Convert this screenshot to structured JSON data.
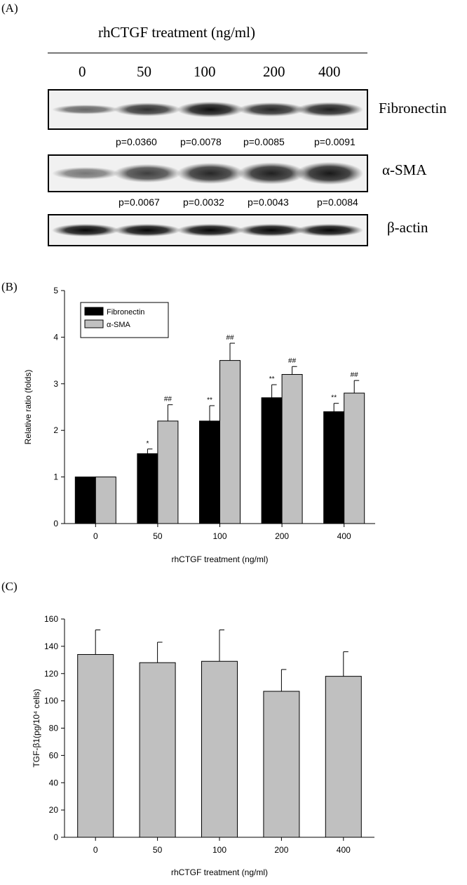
{
  "panel_a": {
    "label": "(A)",
    "treatment_title": "rhCTGF treatment  (ng/ml)",
    "doses": [
      "0",
      "50",
      "100",
      "200",
      "400"
    ],
    "blots": [
      {
        "name": "Fibronectin",
        "intensity": [
          0.35,
          0.7,
          0.9,
          0.75,
          0.8
        ]
      },
      {
        "name": "α-SMA",
        "intensity": [
          0.25,
          0.6,
          0.75,
          0.8,
          0.85
        ]
      },
      {
        "name": "β-actin",
        "intensity": [
          0.95,
          0.95,
          0.95,
          0.95,
          0.95
        ]
      }
    ],
    "fibronectin_pvalues": [
      "p=0.0360",
      "p=0.0078",
      "p=0.0085",
      "p=0.0091"
    ],
    "sma_pvalues": [
      "p=0.0067",
      "p=0.0032",
      "p=0.0043",
      "p=0.0084"
    ]
  },
  "chart_data": [
    {
      "panel": "(B)",
      "type": "bar",
      "categories": [
        "0",
        "50",
        "100",
        "200",
        "400"
      ],
      "series": [
        {
          "name": "Fibronectin",
          "color": "#000000",
          "values": [
            1.0,
            1.5,
            2.2,
            2.7,
            2.4
          ],
          "errors": [
            0,
            0.1,
            0.33,
            0.28,
            0.18
          ],
          "sig": [
            "",
            "*",
            "**",
            "**",
            "**"
          ]
        },
        {
          "name": "α-SMA",
          "color": "#c0c0c0",
          "values": [
            1.0,
            2.2,
            3.5,
            3.2,
            2.8
          ],
          "errors": [
            0,
            0.35,
            0.37,
            0.17,
            0.27
          ],
          "sig": [
            "",
            "##",
            "##",
            "##",
            "##"
          ]
        }
      ],
      "xlabel": "rhCTGF treatment (ng/ml)",
      "ylabel": "Relative ratio (folds)",
      "ylim": [
        0,
        5
      ],
      "yticks": [
        "0",
        "1",
        "2",
        "3",
        "4",
        "5"
      ],
      "legend_position": "top-left"
    },
    {
      "panel": "(C)",
      "type": "bar",
      "categories": [
        "0",
        "50",
        "100",
        "200",
        "400"
      ],
      "series": [
        {
          "color": "#c0c0c0",
          "values": [
            134,
            128,
            129,
            107,
            118
          ],
          "errors": [
            18,
            15,
            23,
            16,
            18
          ]
        }
      ],
      "xlabel": "rhCTGF treatment (ng/ml)",
      "ylabel": "TGF-β1(pg/10⁴ cells)",
      "ylim": [
        0,
        160
      ],
      "yticks": [
        "0",
        "20",
        "40",
        "60",
        "80",
        "100",
        "120",
        "140",
        "160"
      ]
    }
  ]
}
